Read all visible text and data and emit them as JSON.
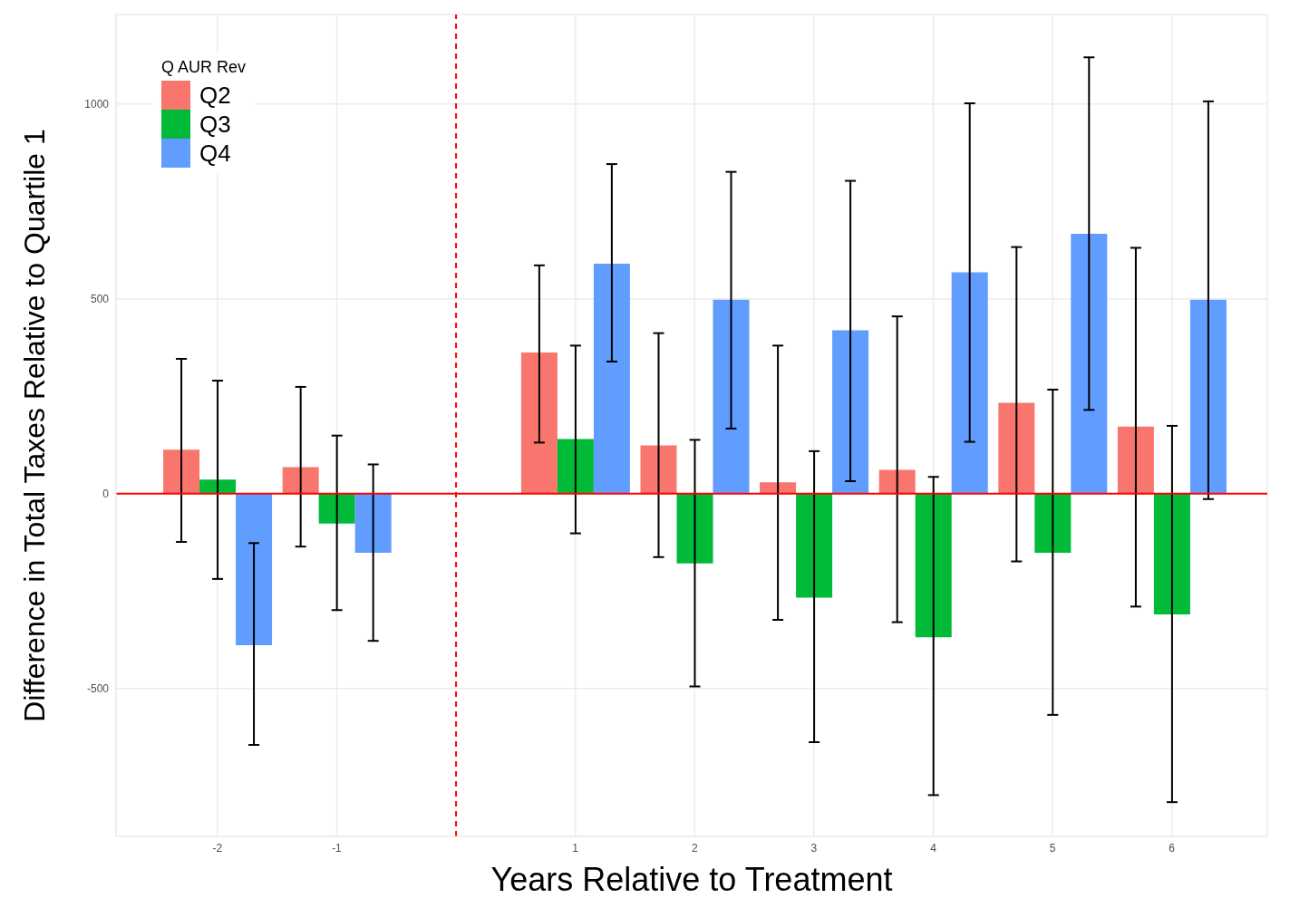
{
  "chart_data": {
    "type": "bar",
    "xlabel": "Years Relative to Treatment",
    "ylabel": "Difference in Total Taxes Relative to Quartile 1",
    "legend_title": "Q AUR Rev",
    "legend": "top left",
    "grid": true,
    "x": [
      -2,
      -1,
      1,
      2,
      3,
      4,
      5,
      6
    ],
    "xlim": [
      -2.85,
      6.8
    ],
    "xticks": [
      -2,
      -1,
      1,
      2,
      3,
      4,
      5,
      6
    ],
    "ylim": [
      -880,
      1230
    ],
    "yticks": [
      -500,
      0,
      500,
      1000
    ],
    "series": [
      {
        "name": "Q2",
        "color": "#f8766d",
        "values": [
          113,
          68,
          362,
          124,
          29,
          61,
          233,
          172
        ],
        "errors": [
          [
            -124,
            346
          ],
          [
            -136,
            274
          ],
          [
            131,
            586
          ],
          [
            -163,
            412
          ],
          [
            -324,
            380
          ],
          [
            -330,
            455
          ],
          [
            -174,
            633
          ],
          [
            -290,
            631
          ]
        ]
      },
      {
        "name": "Q3",
        "color": "#00ba38",
        "values": [
          36,
          -77,
          140,
          -179,
          -267,
          -369,
          -152,
          -310
        ],
        "errors": [
          [
            -219,
            290
          ],
          [
            -299,
            149
          ],
          [
            -102,
            380
          ],
          [
            -495,
            138
          ],
          [
            -638,
            109
          ],
          [
            -774,
            43
          ],
          [
            -568,
            267
          ],
          [
            -792,
            174
          ]
        ]
      },
      {
        "name": "Q4",
        "color": "#619cff",
        "values": [
          -389,
          -152,
          590,
          498,
          419,
          568,
          667,
          498
        ],
        "errors": [
          [
            -645,
            -127
          ],
          [
            -378,
            75
          ],
          [
            339,
            846
          ],
          [
            167,
            826
          ],
          [
            32,
            803
          ],
          [
            133,
            1002
          ],
          [
            215,
            1120
          ],
          [
            -14,
            1007
          ]
        ]
      }
    ],
    "ref_lines": [
      {
        "axis": "x",
        "value": 0,
        "color": "#ff0000",
        "line_style": "dashed"
      },
      {
        "axis": "y",
        "value": 0,
        "color": "#ff0000",
        "line_style": "solid"
      }
    ]
  }
}
